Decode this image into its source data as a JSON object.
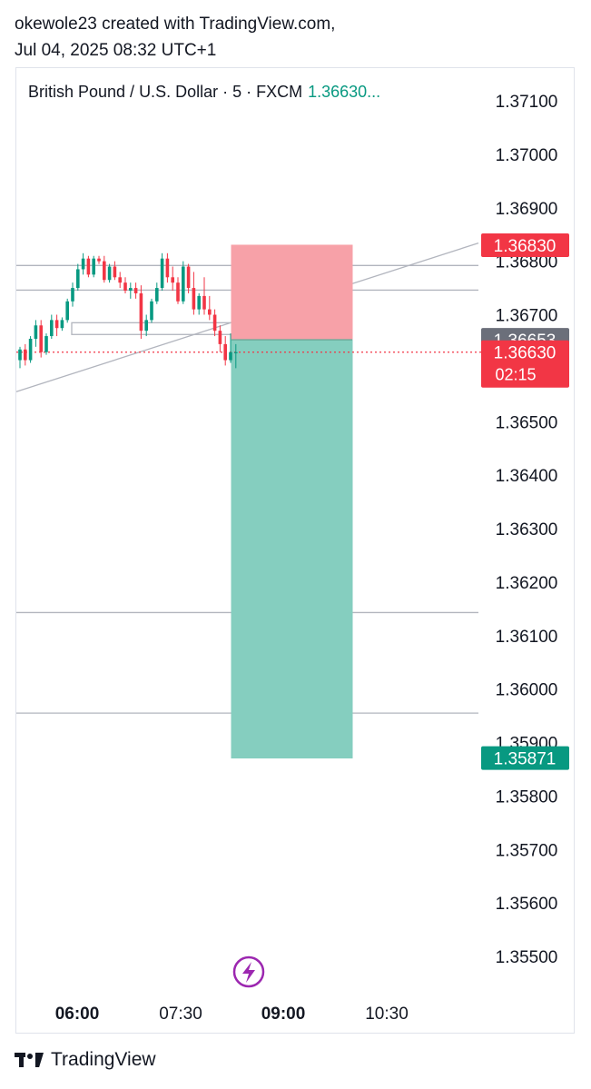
{
  "header": {
    "line1": "okewole23 created with TradingView.com,",
    "line2": "Jul 04, 2025 08:32 UTC+1"
  },
  "legend": {
    "symbol": "British Pound / U.S. Dollar · 5 · FXCM",
    "price": "1.36630..."
  },
  "footer": {
    "brand": "TradingView"
  },
  "colors": {
    "up": "#089981",
    "down": "#f23645",
    "stop_zone": "#f7a1a8",
    "target_zone": "#85cebf",
    "neutral_label": "#6b6f7a"
  },
  "chart_data": {
    "type": "candlestick",
    "ylim": [
      1.3545,
      1.3718
    ],
    "y_ticks": [
      "1.37100",
      "1.37000",
      "1.36900",
      "1.36800",
      "1.36700",
      "1.36600",
      "1.36500",
      "1.36400",
      "1.36300",
      "1.36200",
      "1.36100",
      "1.36000",
      "1.35900",
      "1.35800",
      "1.35700",
      "1.35600",
      "1.35500"
    ],
    "x_ticks": [
      {
        "label": "06:00",
        "bold": true
      },
      {
        "label": "07:30",
        "bold": false
      },
      {
        "label": "09:00",
        "bold": true
      },
      {
        "label": "10:30",
        "bold": false
      }
    ],
    "price_labels": [
      {
        "value": 1.3683,
        "text": "1.36830",
        "color": "down"
      },
      {
        "value": 1.36653,
        "text": "1.36653",
        "color": "neutral_label"
      },
      {
        "value": 1.3663,
        "text": "1.36630",
        "sub": "02:15",
        "color": "down"
      },
      {
        "value": 1.35871,
        "text": "1.35871",
        "color": "up"
      }
    ],
    "current_price": 1.3663,
    "horizontal_lines": [
      1.36792,
      1.36746,
      1.36143,
      1.35955
    ],
    "trend_line": {
      "start": 1.36556,
      "end": 1.36834
    },
    "zone_box": {
      "high": 1.36685,
      "low": 1.36663
    },
    "position": {
      "type": "short",
      "entry": 1.36653,
      "stop": 1.3683,
      "target": 1.35871
    },
    "candles": [
      [
        1.36615,
        1.3664,
        1.366,
        1.36635
      ],
      [
        1.36635,
        1.36645,
        1.36605,
        1.36615
      ],
      [
        1.36615,
        1.3666,
        1.3661,
        1.36655
      ],
      [
        1.36655,
        1.3669,
        1.3664,
        1.3668
      ],
      [
        1.3668,
        1.3669,
        1.3662,
        1.3663
      ],
      [
        1.3663,
        1.36665,
        1.36625,
        1.3666
      ],
      [
        1.3666,
        1.367,
        1.36655,
        1.3669
      ],
      [
        1.3669,
        1.367,
        1.3666,
        1.36675
      ],
      [
        1.36675,
        1.36695,
        1.3667,
        1.3669
      ],
      [
        1.3669,
        1.3673,
        1.36685,
        1.36725
      ],
      [
        1.36725,
        1.3676,
        1.36715,
        1.3675
      ],
      [
        1.3675,
        1.36795,
        1.36745,
        1.36785
      ],
      [
        1.36785,
        1.36815,
        1.36775,
        1.36805
      ],
      [
        1.36805,
        1.3681,
        1.3677,
        1.36775
      ],
      [
        1.36775,
        1.3681,
        1.3677,
        1.36805
      ],
      [
        1.36805,
        1.3681,
        1.36795,
        1.368
      ],
      [
        1.368,
        1.3681,
        1.3676,
        1.36765
      ],
      [
        1.36765,
        1.36795,
        1.3676,
        1.3679
      ],
      [
        1.3679,
        1.368,
        1.36765,
        1.3677
      ],
      [
        1.3677,
        1.3678,
        1.3675,
        1.3676
      ],
      [
        1.3676,
        1.3677,
        1.3674,
        1.36745
      ],
      [
        1.36745,
        1.3676,
        1.3673,
        1.3675
      ],
      [
        1.3675,
        1.3676,
        1.3673,
        1.3674
      ],
      [
        1.3674,
        1.36755,
        1.36655,
        1.3667
      ],
      [
        1.3667,
        1.367,
        1.3666,
        1.3669
      ],
      [
        1.3669,
        1.3673,
        1.36685,
        1.36725
      ],
      [
        1.36725,
        1.3676,
        1.3672,
        1.3675
      ],
      [
        1.3675,
        1.36815,
        1.36745,
        1.36805
      ],
      [
        1.36805,
        1.36815,
        1.3676,
        1.3677
      ],
      [
        1.3677,
        1.3679,
        1.36745,
        1.3676
      ],
      [
        1.3676,
        1.3677,
        1.3672,
        1.36725
      ],
      [
        1.36725,
        1.368,
        1.3672,
        1.3679
      ],
      [
        1.3679,
        1.36795,
        1.3674,
        1.3675
      ],
      [
        1.3675,
        1.3678,
        1.367,
        1.3671
      ],
      [
        1.3671,
        1.3674,
        1.367,
        1.36735
      ],
      [
        1.36735,
        1.3677,
        1.367,
        1.3671
      ],
      [
        1.3671,
        1.36735,
        1.3669,
        1.367
      ],
      [
        1.367,
        1.3671,
        1.3666,
        1.3667
      ],
      [
        1.3667,
        1.3668,
        1.3663,
        1.36645
      ],
      [
        1.36645,
        1.3666,
        1.36605,
        1.36615
      ],
      [
        1.36615,
        1.36665,
        1.3661,
        1.3663
      ],
      [
        1.3663,
        1.36645,
        1.366,
        1.3663
      ]
    ]
  }
}
